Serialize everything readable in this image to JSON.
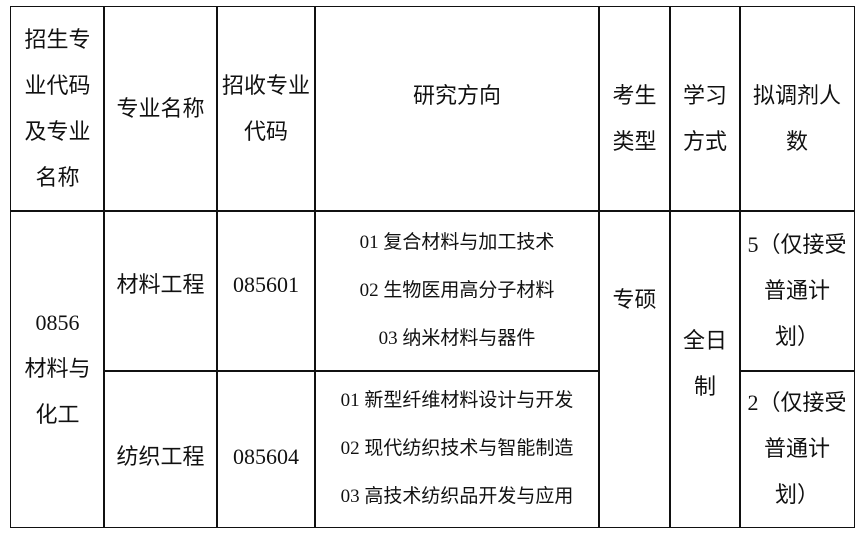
{
  "header": {
    "col1": [
      "招生专",
      "业代码",
      "及专业",
      "名称"
    ],
    "col2": "专业名称",
    "col3": [
      "招收专业",
      "代码"
    ],
    "col4": "研究方向",
    "col5": [
      "考生",
      "类型"
    ],
    "col6": [
      "学习",
      "方式"
    ],
    "col7": [
      "拟调剂人",
      "数"
    ]
  },
  "group": {
    "code": "0856",
    "name": [
      "材料与",
      "化工"
    ]
  },
  "student_type": "专硕",
  "study_mode": [
    "全日",
    "制"
  ],
  "rows": [
    {
      "major": "材料工程",
      "code": "085601",
      "directions": [
        "01 复合材料与加工技术",
        "02 生物医用高分子材料",
        "03 纳米材料与器件"
      ],
      "quota": [
        "5（仅接受",
        "普通计",
        "划）"
      ]
    },
    {
      "major": "纺织工程",
      "code": "085604",
      "directions": [
        "01 新型纤维材料设计与开发",
        "02 现代纺织技术与智能制造",
        "03 高技术纺织品开发与应用"
      ],
      "quota": [
        "2（仅接受",
        "普通计",
        "划）"
      ]
    }
  ]
}
